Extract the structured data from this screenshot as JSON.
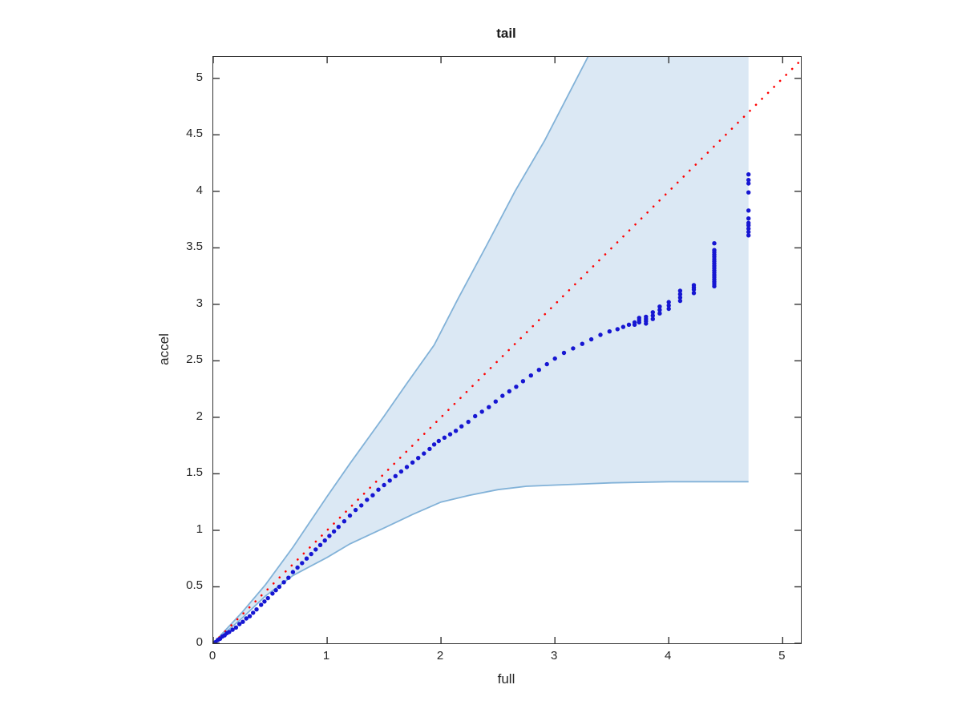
{
  "chart_data": {
    "type": "scatter",
    "title": "tail",
    "xlabel": "full",
    "ylabel": "accel",
    "xlim": [
      0,
      5.16
    ],
    "ylim": [
      0,
      5.19
    ],
    "xticks": [
      0,
      1,
      2,
      3,
      4,
      5
    ],
    "xtick_labels": [
      "0",
      "1",
      "2",
      "3",
      "4",
      "5"
    ],
    "yticks": [
      0,
      0.5,
      1,
      1.5,
      2,
      2.5,
      3,
      3.5,
      4,
      4.5,
      5
    ],
    "ytick_labels": [
      "0",
      "0.5",
      "1",
      "1.5",
      "2",
      "2.5",
      "3",
      "3.5",
      "4",
      "4.5",
      "5"
    ],
    "grid": false,
    "box": true,
    "legend": null,
    "colors": {
      "axis": "#333333",
      "text": "#262626",
      "band_fill": "#dbe8f4",
      "band_edge": "#82b2d8",
      "point": "#1616d2",
      "reference": "#ff0000"
    },
    "reference_line": {
      "style": "dotted",
      "color": "#ff0000",
      "from": [
        0,
        0
      ],
      "to": [
        5.16,
        5.16
      ]
    },
    "confidence_band": {
      "right_edge_x": 4.7,
      "lower_asymptote": 1.43,
      "upper": [
        [
          0,
          0
        ],
        [
          0.25,
          0.27
        ],
        [
          0.46,
          0.52
        ],
        [
          0.7,
          0.85
        ],
        [
          1.0,
          1.3
        ],
        [
          1.2,
          1.59
        ],
        [
          1.5,
          2.01
        ],
        [
          1.7,
          2.3
        ],
        [
          1.94,
          2.64
        ],
        [
          2.15,
          3.05
        ],
        [
          2.4,
          3.52
        ],
        [
          2.65,
          4.0
        ],
        [
          2.91,
          4.45
        ],
        [
          3.1,
          4.82
        ],
        [
          3.29,
          5.19
        ]
      ],
      "lower": [
        [
          0,
          0
        ],
        [
          0.25,
          0.22
        ],
        [
          0.46,
          0.42
        ],
        [
          0.7,
          0.6
        ],
        [
          1.0,
          0.76
        ],
        [
          1.2,
          0.88
        ],
        [
          1.5,
          1.02
        ],
        [
          1.75,
          1.14
        ],
        [
          2.0,
          1.25
        ],
        [
          2.25,
          1.31
        ],
        [
          2.5,
          1.36
        ],
        [
          2.75,
          1.39
        ],
        [
          3.0,
          1.4
        ],
        [
          3.25,
          1.41
        ],
        [
          3.5,
          1.42
        ],
        [
          4.0,
          1.43
        ],
        [
          4.35,
          1.43
        ],
        [
          4.7,
          1.43
        ]
      ]
    },
    "points_main": [
      [
        0.02,
        0.01
      ],
      [
        0.04,
        0.03
      ],
      [
        0.06,
        0.04
      ],
      [
        0.08,
        0.06
      ],
      [
        0.1,
        0.07
      ],
      [
        0.12,
        0.09
      ],
      [
        0.14,
        0.1
      ],
      [
        0.17,
        0.12
      ],
      [
        0.2,
        0.14
      ],
      [
        0.23,
        0.17
      ],
      [
        0.26,
        0.19
      ],
      [
        0.29,
        0.22
      ],
      [
        0.32,
        0.24
      ],
      [
        0.35,
        0.27
      ],
      [
        0.38,
        0.3
      ],
      [
        0.42,
        0.34
      ],
      [
        0.45,
        0.37
      ],
      [
        0.48,
        0.4
      ],
      [
        0.52,
        0.44
      ],
      [
        0.55,
        0.47
      ],
      [
        0.58,
        0.5
      ],
      [
        0.62,
        0.54
      ],
      [
        0.66,
        0.58
      ],
      [
        0.7,
        0.63
      ],
      [
        0.74,
        0.67
      ],
      [
        0.78,
        0.71
      ],
      [
        0.82,
        0.75
      ],
      [
        0.86,
        0.79
      ],
      [
        0.9,
        0.83
      ],
      [
        0.94,
        0.87
      ],
      [
        0.98,
        0.91
      ],
      [
        1.02,
        0.95
      ],
      [
        1.06,
        0.99
      ],
      [
        1.1,
        1.03
      ],
      [
        1.15,
        1.08
      ],
      [
        1.2,
        1.13
      ],
      [
        1.25,
        1.18
      ],
      [
        1.3,
        1.22
      ],
      [
        1.35,
        1.27
      ],
      [
        1.4,
        1.31
      ],
      [
        1.45,
        1.36
      ],
      [
        1.5,
        1.4
      ],
      [
        1.55,
        1.44
      ],
      [
        1.6,
        1.48
      ],
      [
        1.65,
        1.52
      ],
      [
        1.7,
        1.56
      ],
      [
        1.75,
        1.6
      ],
      [
        1.8,
        1.64
      ],
      [
        1.85,
        1.68
      ],
      [
        1.9,
        1.72
      ],
      [
        1.94,
        1.76
      ],
      [
        1.98,
        1.79
      ],
      [
        2.03,
        1.82
      ],
      [
        2.08,
        1.85
      ],
      [
        2.13,
        1.88
      ],
      [
        2.18,
        1.92
      ],
      [
        2.24,
        1.96
      ],
      [
        2.3,
        2.01
      ],
      [
        2.36,
        2.05
      ],
      [
        2.42,
        2.09
      ],
      [
        2.48,
        2.14
      ],
      [
        2.54,
        2.19
      ],
      [
        2.6,
        2.23
      ],
      [
        2.66,
        2.27
      ],
      [
        2.72,
        2.32
      ],
      [
        2.79,
        2.37
      ],
      [
        2.86,
        2.42
      ],
      [
        2.93,
        2.47
      ],
      [
        3.0,
        2.52
      ],
      [
        3.08,
        2.57
      ],
      [
        3.16,
        2.61
      ],
      [
        3.24,
        2.65
      ],
      [
        3.32,
        2.69
      ],
      [
        3.4,
        2.73
      ],
      [
        3.48,
        2.76
      ],
      [
        3.55,
        2.78
      ],
      [
        3.6,
        2.8
      ],
      [
        3.65,
        2.82
      ]
    ],
    "point_clusters": [
      {
        "x": 3.7,
        "ys": [
          2.82,
          2.84
        ]
      },
      {
        "x": 3.74,
        "ys": [
          2.84,
          2.86,
          2.88
        ]
      },
      {
        "x": 3.8,
        "ys": [
          2.83,
          2.85,
          2.87,
          2.89
        ]
      },
      {
        "x": 3.86,
        "ys": [
          2.87,
          2.9,
          2.93
        ]
      },
      {
        "x": 3.92,
        "ys": [
          2.92,
          2.95,
          2.98
        ]
      },
      {
        "x": 4.0,
        "ys": [
          2.96,
          2.99,
          3.02
        ]
      },
      {
        "x": 4.1,
        "ys": [
          3.03,
          3.06,
          3.09,
          3.12
        ]
      },
      {
        "x": 4.22,
        "ys": [
          3.1,
          3.13,
          3.15,
          3.17
        ]
      },
      {
        "x": 4.4,
        "ys": [
          3.16,
          3.18,
          3.2,
          3.22,
          3.24,
          3.26,
          3.28,
          3.3,
          3.32,
          3.34,
          3.36,
          3.38,
          3.4,
          3.42,
          3.44,
          3.46,
          3.48,
          3.54
        ]
      },
      {
        "x": 4.7,
        "ys": [
          3.61,
          3.64,
          3.67,
          3.7,
          3.72,
          3.76,
          3.83,
          3.99,
          4.07,
          4.1,
          4.15
        ]
      }
    ]
  }
}
